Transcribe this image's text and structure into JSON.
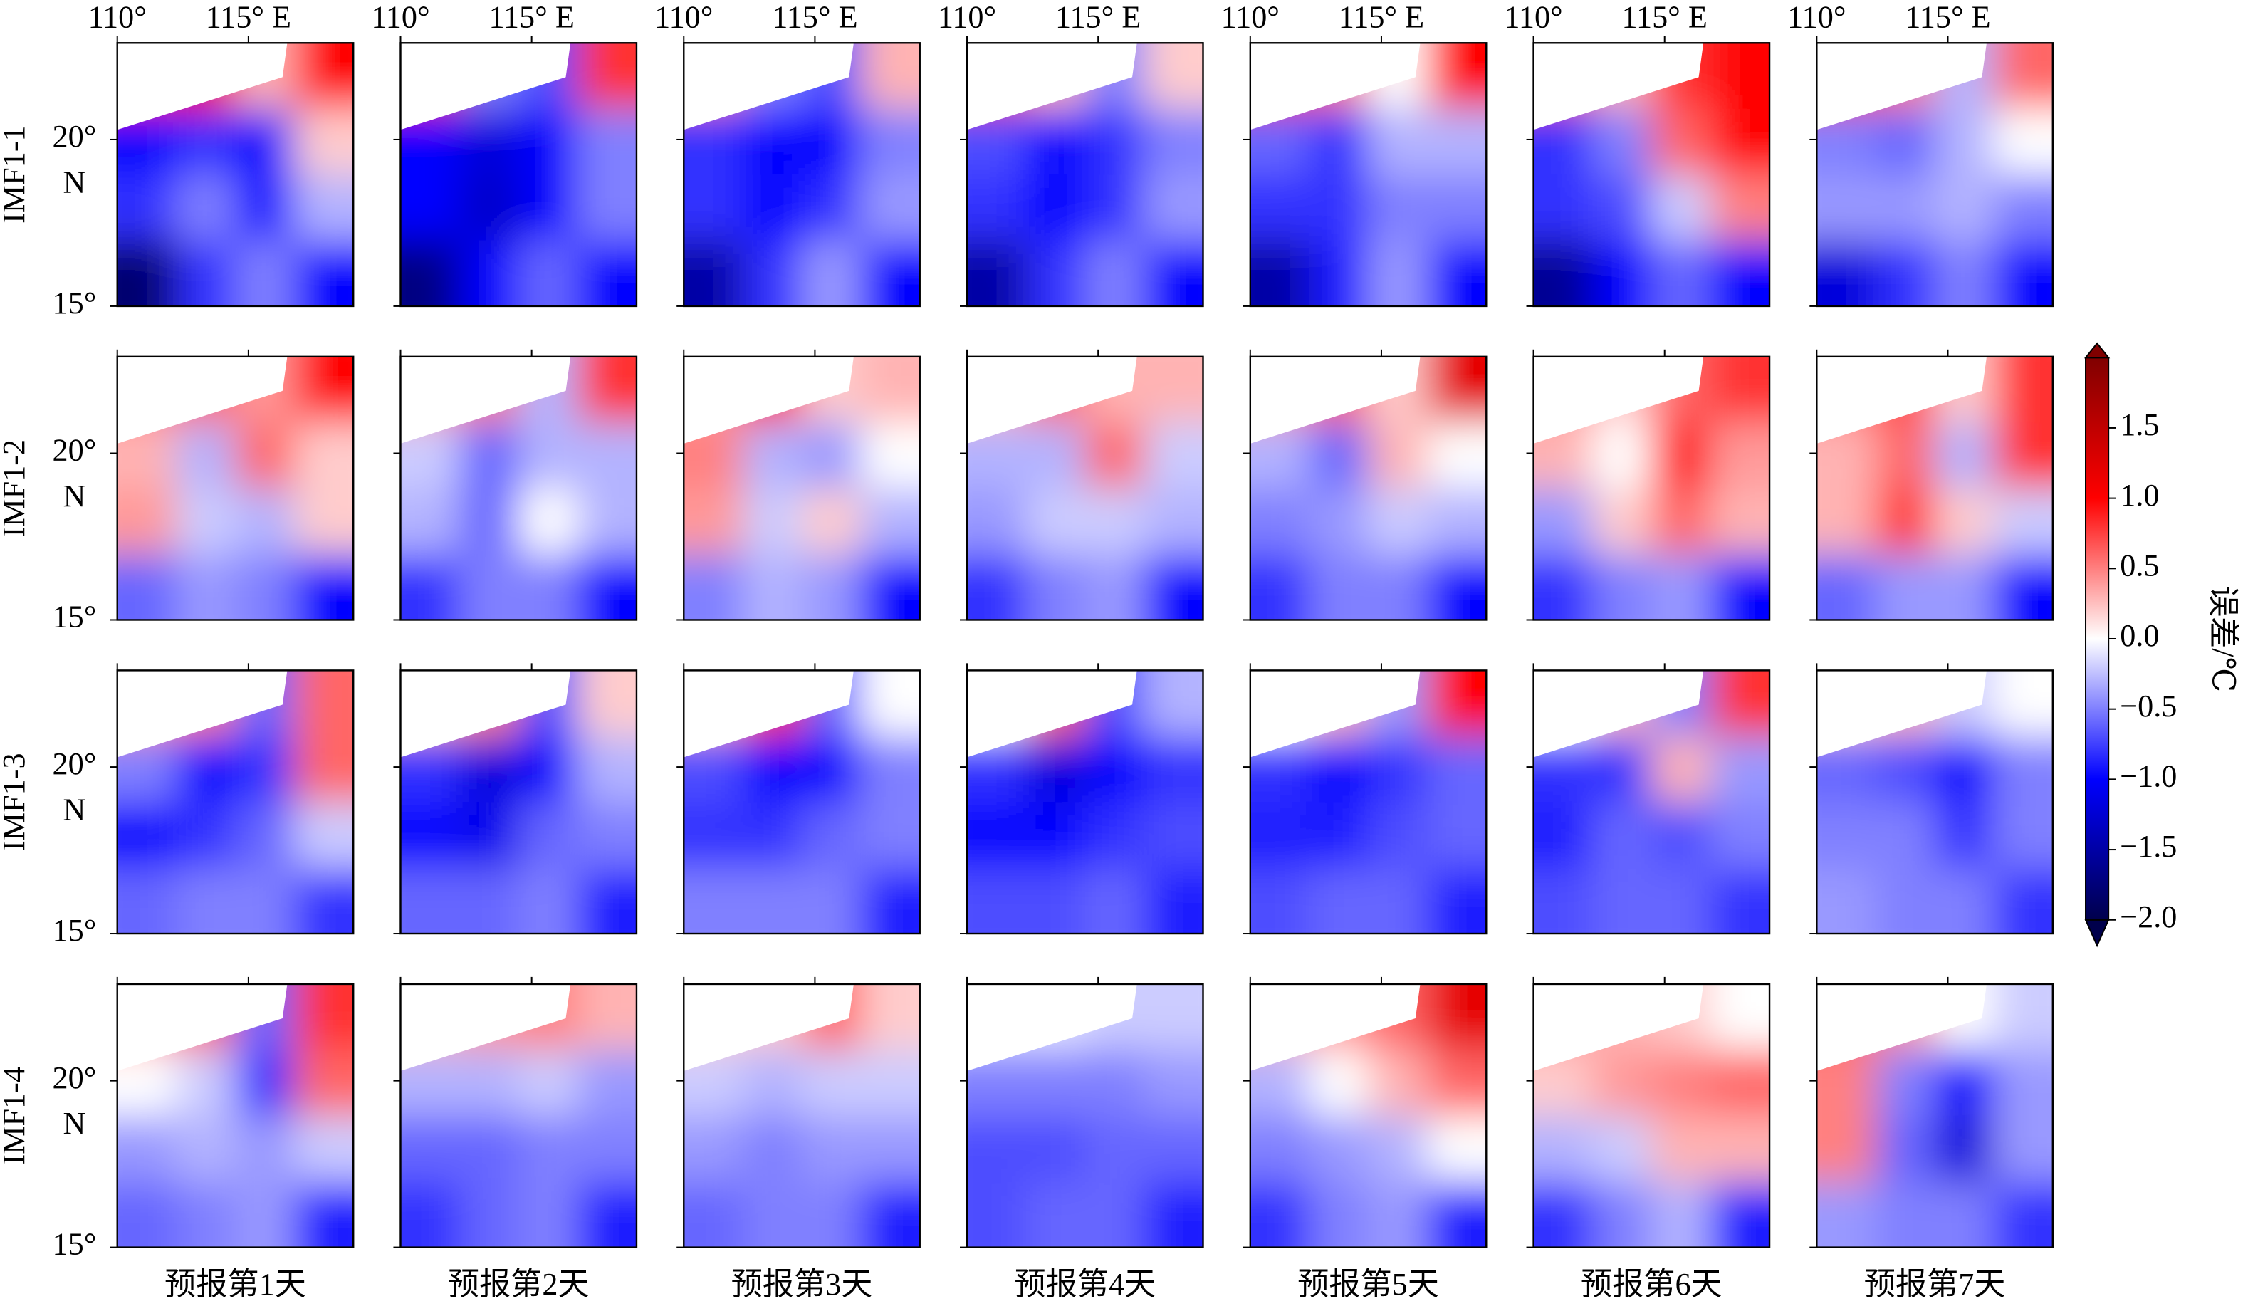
{
  "chart_data": {
    "type": "heatmap",
    "rows": [
      "IMF1-1",
      "IMF1-2",
      "IMF1-3",
      "IMF1-4"
    ],
    "columns": [
      "预报第1天",
      "预报第2天",
      "预报第3天",
      "预报第4天",
      "预报第5天",
      "预报第6天",
      "预报第7天"
    ],
    "xlim": [
      110,
      119
    ],
    "ylim": [
      15,
      22.9
    ],
    "xticks": [
      {
        "value": 110,
        "label": "110°"
      },
      {
        "value": 115,
        "label": "115° E"
      }
    ],
    "yticks": [
      {
        "value": 15,
        "label": [
          "15°"
        ]
      },
      {
        "value": 20,
        "label": [
          "20°",
          "N"
        ]
      }
    ],
    "colorbar": {
      "label": "误差/℃",
      "clim": [
        -2,
        2
      ],
      "colors": [
        "#00004c",
        "#0000ff",
        "#ffffff",
        "#ff0000",
        "#800000"
      ],
      "ticks": [
        {
          "value": -2,
          "label": "−2.0"
        },
        {
          "value": -1.5,
          "label": "−1.5"
        },
        {
          "value": -1,
          "label": "−1.0"
        },
        {
          "value": -0.5,
          "label": "−0.5"
        },
        {
          "value": 0,
          "label": "0.0"
        },
        {
          "value": 0.5,
          "label": "0.5"
        },
        {
          "value": 1,
          "label": "1.0"
        },
        {
          "value": 1.5,
          "label": "1.5"
        }
      ]
    },
    "panels": [
      [
        [
          [
            0.8,
            1.0,
            0.3,
            1.0
          ],
          [
            -1.0,
            -0.8,
            -1.0,
            0.2
          ],
          [
            -0.8,
            -0.5,
            -1.0,
            -0.3
          ],
          [
            -1.8,
            -0.8,
            -0.5,
            -1.0
          ]
        ],
        [
          [
            0.8,
            -0.5,
            -0.7,
            0.8
          ],
          [
            -1.0,
            -1.2,
            -1.0,
            -0.5
          ],
          [
            -1.0,
            -1.3,
            -1.0,
            -0.5
          ],
          [
            -1.7,
            -1.0,
            -0.6,
            -1.0
          ]
        ],
        [
          [
            0.5,
            -0.5,
            -0.7,
            0.3
          ],
          [
            -0.8,
            -1.0,
            -1.0,
            -0.5
          ],
          [
            -0.8,
            -1.0,
            -0.8,
            -0.4
          ],
          [
            -1.5,
            -0.8,
            -0.4,
            -1.0
          ]
        ],
        [
          [
            0.7,
            0.3,
            -0.5,
            0.2
          ],
          [
            -0.7,
            -1.0,
            -0.8,
            -0.5
          ],
          [
            -0.8,
            -1.0,
            -0.8,
            -0.4
          ],
          [
            -1.5,
            -0.8,
            -0.5,
            -1.0
          ]
        ],
        [
          [
            0.8,
            0.5,
            0.0,
            1.0
          ],
          [
            -0.6,
            -0.8,
            -0.3,
            -0.3
          ],
          [
            -0.8,
            -0.8,
            -0.5,
            -0.5
          ],
          [
            -1.5,
            -0.9,
            -0.4,
            -1.0
          ]
        ],
        [
          [
            0.6,
            0.3,
            0.8,
            1.0
          ],
          [
            -0.8,
            -0.5,
            0.6,
            1.0
          ],
          [
            -0.8,
            -0.7,
            -0.2,
            0.5
          ],
          [
            -1.6,
            -1.0,
            -0.6,
            -1.0
          ]
        ],
        [
          [
            0.8,
            0.5,
            -0.3,
            0.6
          ],
          [
            -0.5,
            -0.6,
            -0.3,
            0.0
          ],
          [
            -0.4,
            -0.4,
            -0.3,
            -0.5
          ],
          [
            -1.2,
            -0.8,
            -0.5,
            -1.0
          ]
        ]
      ],
      [
        [
          [
            0.5,
            0.6,
            0.4,
            1.0
          ],
          [
            0.3,
            -0.3,
            0.6,
            0.2
          ],
          [
            0.4,
            -0.2,
            -0.3,
            0.2
          ],
          [
            -0.6,
            -0.4,
            -0.5,
            -1.0
          ]
        ],
        [
          [
            0.4,
            0.5,
            -0.3,
            0.8
          ],
          [
            -0.2,
            -0.6,
            -0.3,
            -0.3
          ],
          [
            -0.3,
            -0.6,
            0.0,
            -0.3
          ],
          [
            -0.8,
            -0.5,
            -0.5,
            -1.0
          ]
        ],
        [
          [
            0.4,
            1.0,
            0.2,
            0.3
          ],
          [
            0.5,
            -0.3,
            -0.4,
            0.0
          ],
          [
            0.4,
            -0.2,
            0.2,
            -0.3
          ],
          [
            -0.5,
            -0.3,
            -0.4,
            -1.0
          ]
        ],
        [
          [
            0.3,
            0.6,
            0.3,
            0.3
          ],
          [
            -0.3,
            -0.3,
            0.6,
            -0.2
          ],
          [
            -0.4,
            -0.2,
            -0.2,
            -0.3
          ],
          [
            -0.8,
            -0.5,
            -0.4,
            -1.0
          ]
        ],
        [
          [
            0.4,
            0.6,
            0.2,
            1.2
          ],
          [
            -0.3,
            -0.6,
            0.3,
            0.0
          ],
          [
            -0.5,
            -0.4,
            -0.2,
            -0.3
          ],
          [
            -0.8,
            -0.5,
            -0.5,
            -1.0
          ]
        ],
        [
          [
            0.4,
            0.2,
            0.6,
            0.8
          ],
          [
            0.3,
            0.0,
            1.0,
            0.4
          ],
          [
            -0.4,
            0.2,
            0.6,
            0.3
          ],
          [
            -0.8,
            -0.5,
            -0.4,
            -1.0
          ]
        ],
        [
          [
            0.5,
            0.7,
            0.2,
            0.8
          ],
          [
            0.3,
            0.6,
            -0.3,
            0.8
          ],
          [
            0.3,
            0.8,
            0.2,
            -0.2
          ],
          [
            -0.6,
            -0.4,
            -0.4,
            -1.0
          ]
        ]
      ],
      [
        [
          [
            0.4,
            0.5,
            -0.6,
            0.6
          ],
          [
            -0.5,
            -1.0,
            -0.8,
            0.6
          ],
          [
            -1.0,
            -0.8,
            -0.6,
            -0.2
          ],
          [
            -0.6,
            -0.5,
            -0.5,
            -0.8
          ]
        ],
        [
          [
            0.3,
            0.5,
            -0.7,
            0.2
          ],
          [
            -0.8,
            -1.2,
            -1.0,
            -0.3
          ],
          [
            -1.0,
            -1.1,
            -0.6,
            -0.5
          ],
          [
            -0.6,
            -0.6,
            -0.5,
            -0.9
          ]
        ],
        [
          [
            0.3,
            0.8,
            -0.6,
            0.0
          ],
          [
            -0.7,
            -1.0,
            -1.0,
            -0.5
          ],
          [
            -0.8,
            -0.8,
            -0.6,
            -0.5
          ],
          [
            -0.5,
            -0.5,
            -0.5,
            -0.9
          ]
        ],
        [
          [
            0.0,
            0.6,
            -0.7,
            -0.3
          ],
          [
            -0.8,
            -1.2,
            -1.0,
            -0.8
          ],
          [
            -1.0,
            -1.0,
            -0.8,
            -0.7
          ],
          [
            -0.7,
            -0.7,
            -0.6,
            -0.9
          ]
        ],
        [
          [
            0.0,
            0.3,
            -0.4,
            1.0
          ],
          [
            -0.8,
            -1.0,
            -0.8,
            -0.6
          ],
          [
            -0.9,
            -0.9,
            -0.7,
            -0.6
          ],
          [
            -0.7,
            -0.6,
            -0.6,
            -0.9
          ]
        ],
        [
          [
            0.0,
            0.3,
            -0.5,
            0.8
          ],
          [
            -0.8,
            -0.8,
            0.3,
            -0.4
          ],
          [
            -0.9,
            -0.6,
            -0.7,
            -0.5
          ],
          [
            -0.7,
            -0.6,
            -0.6,
            -0.8
          ]
        ],
        [
          [
            0.2,
            0.3,
            -0.2,
            0.0
          ],
          [
            -0.6,
            -0.7,
            -1.0,
            -0.5
          ],
          [
            -0.5,
            -0.5,
            -0.8,
            -0.5
          ],
          [
            -0.4,
            -0.5,
            -0.5,
            -0.8
          ]
        ]
      ],
      [
        [
          [
            0.4,
            0.6,
            -0.6,
            0.8
          ],
          [
            0.0,
            -0.2,
            -0.8,
            0.6
          ],
          [
            -0.4,
            -0.3,
            -0.4,
            -0.2
          ],
          [
            -0.6,
            -0.5,
            -0.4,
            -0.9
          ]
        ],
        [
          [
            0.3,
            0.4,
            0.5,
            0.3
          ],
          [
            -0.3,
            -0.3,
            -0.2,
            -0.4
          ],
          [
            -0.6,
            -0.6,
            -0.5,
            -0.5
          ],
          [
            -0.8,
            -0.6,
            -0.5,
            -0.9
          ]
        ],
        [
          [
            0.2,
            0.2,
            0.6,
            0.2
          ],
          [
            -0.2,
            -0.3,
            -0.2,
            -0.2
          ],
          [
            -0.4,
            -0.5,
            -0.4,
            -0.4
          ],
          [
            -0.6,
            -0.5,
            -0.5,
            -0.9
          ]
        ],
        [
          [
            -0.1,
            -0.1,
            -0.2,
            -0.2
          ],
          [
            -0.5,
            -0.5,
            -0.5,
            -0.4
          ],
          [
            -0.7,
            -0.7,
            -0.6,
            -0.6
          ],
          [
            -0.7,
            -0.6,
            -0.6,
            -0.9
          ]
        ],
        [
          [
            0.3,
            0.4,
            0.6,
            1.2
          ],
          [
            -0.3,
            0.0,
            0.3,
            0.6
          ],
          [
            -0.5,
            -0.4,
            -0.3,
            0.0
          ],
          [
            -0.8,
            -0.5,
            -0.4,
            -0.9
          ]
        ],
        [
          [
            0.4,
            0.3,
            0.2,
            0.0
          ],
          [
            0.2,
            0.4,
            0.5,
            0.6
          ],
          [
            -0.3,
            -0.2,
            0.3,
            0.3
          ],
          [
            -0.8,
            -0.5,
            -0.3,
            -0.9
          ]
        ],
        [
          [
            0.6,
            0.4,
            0.0,
            -0.2
          ],
          [
            0.5,
            -0.5,
            -1.0,
            -0.4
          ],
          [
            0.5,
            -0.6,
            -1.2,
            -0.4
          ],
          [
            -0.4,
            -0.5,
            -0.5,
            -0.8
          ]
        ]
      ]
    ]
  }
}
